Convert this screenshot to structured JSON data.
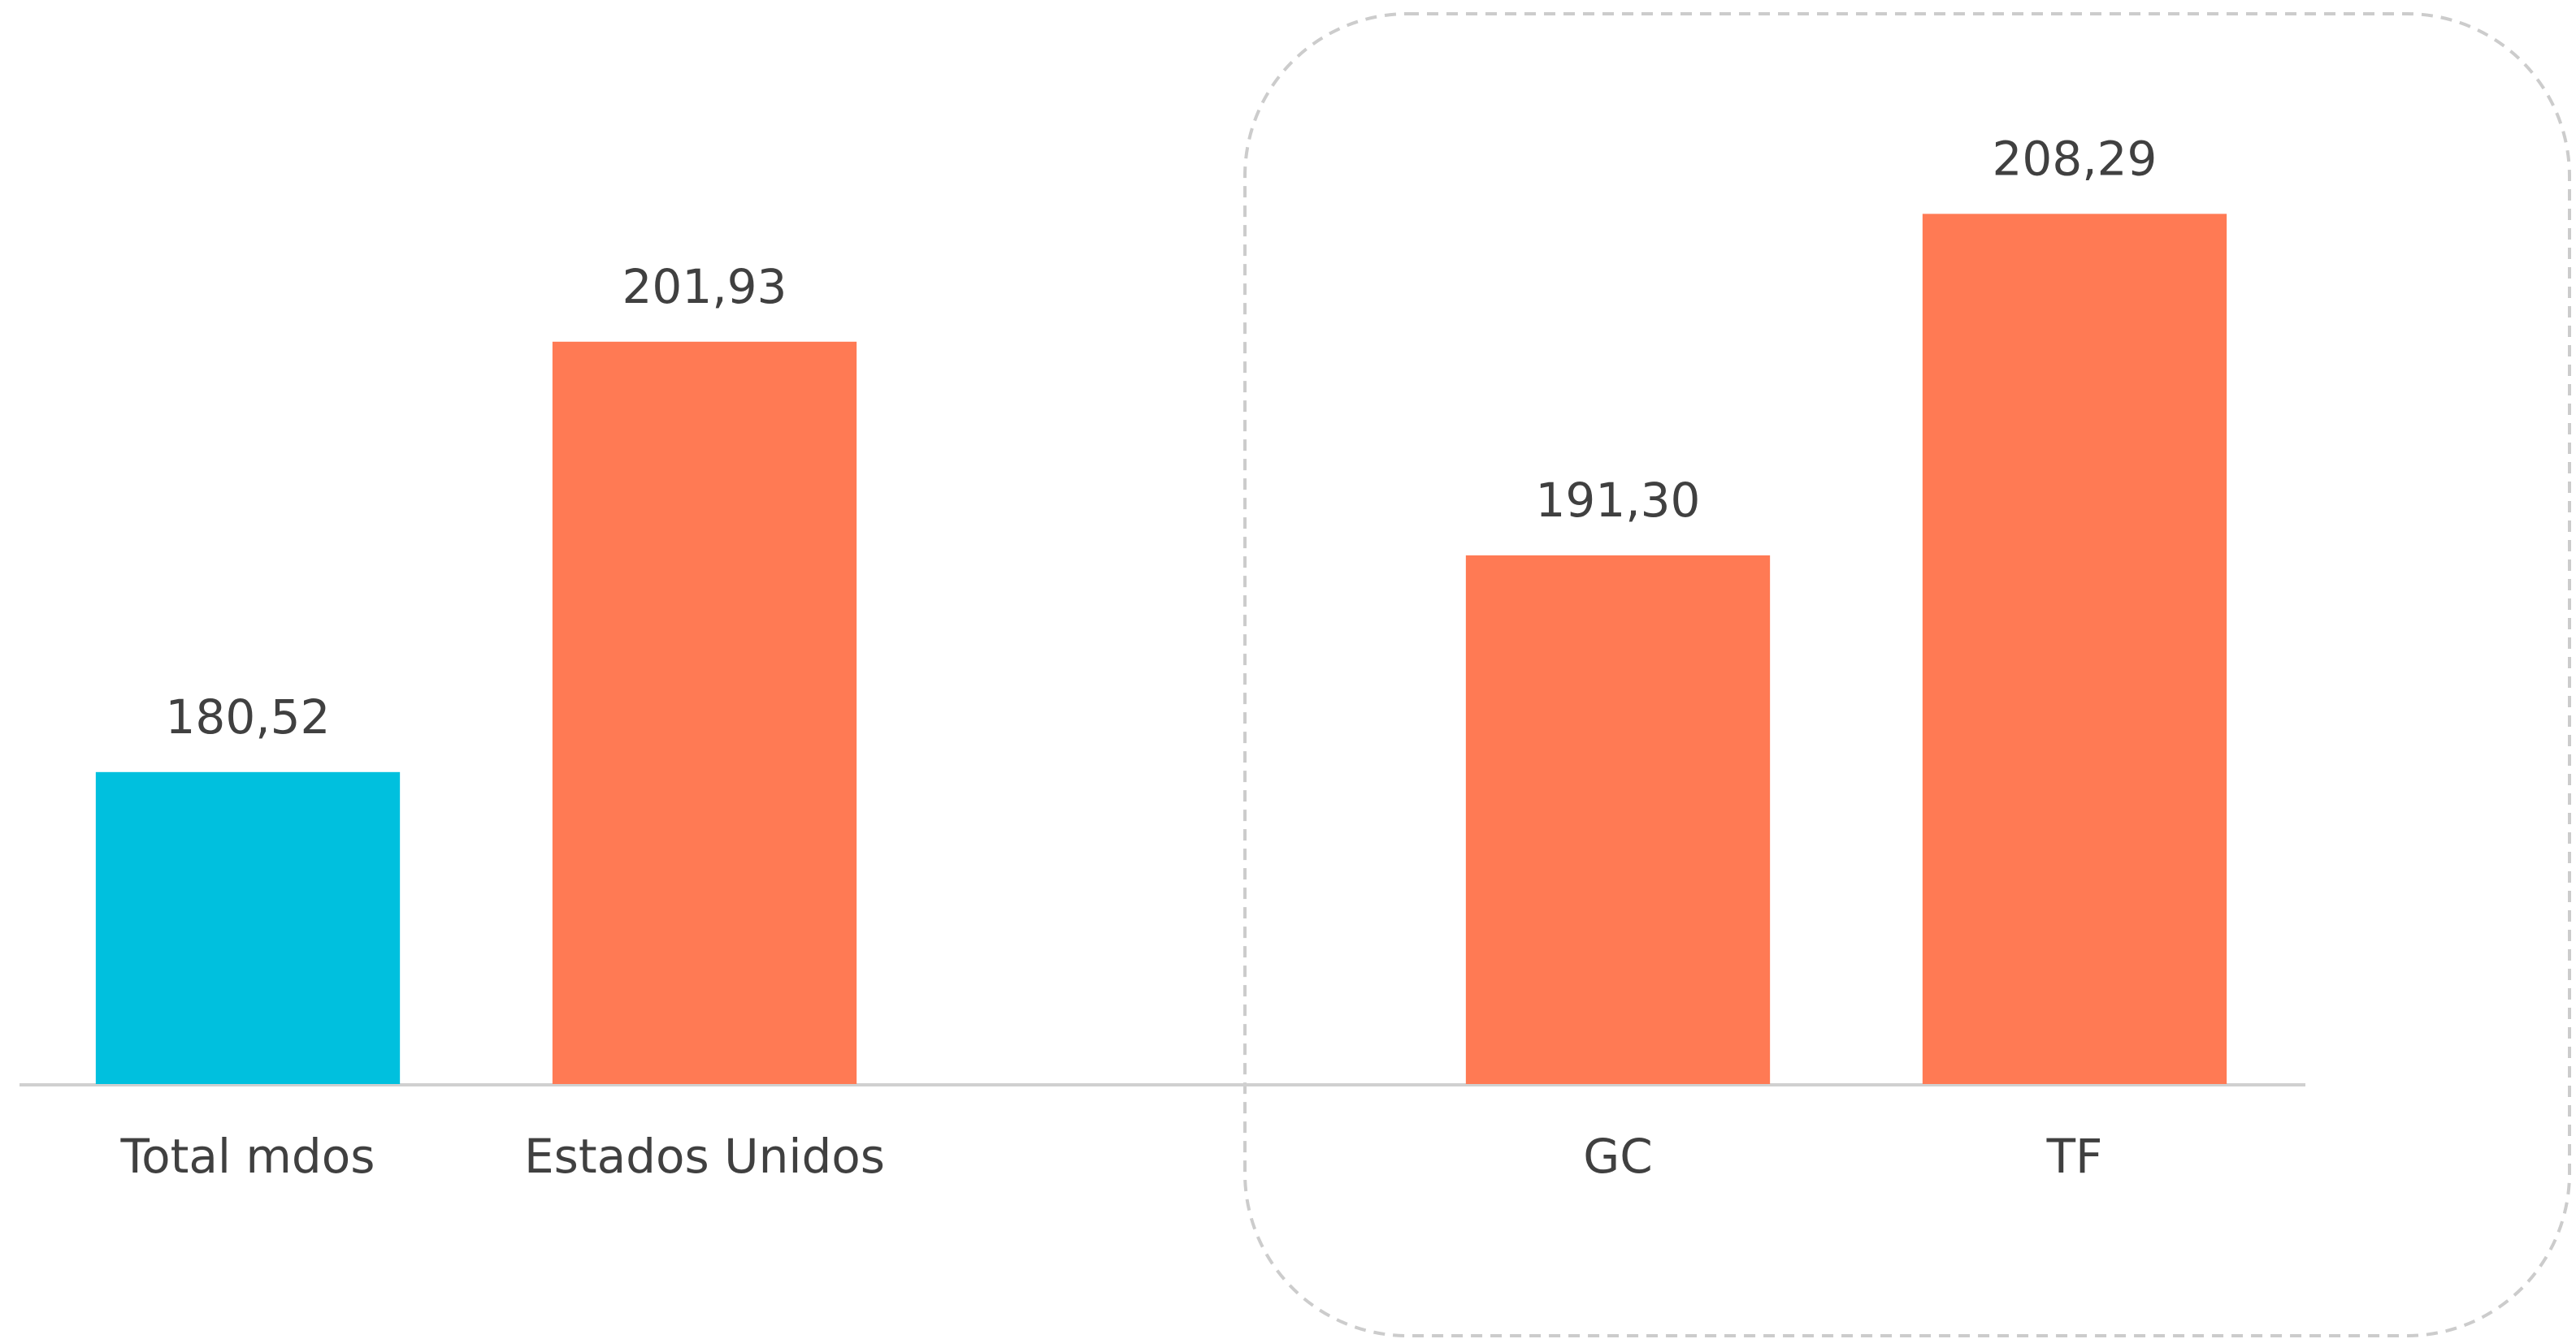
{
  "chart_data": {
    "type": "bar",
    "categories": [
      "Total mdos",
      "Estados Unidos",
      null,
      "GC",
      "TF"
    ],
    "values": [
      180.52,
      201.93,
      null,
      191.3,
      208.29
    ],
    "value_labels": [
      "180,52",
      "201,93",
      null,
      "191,30",
      "208,29"
    ],
    "colors": [
      "#00c0de",
      "#ff7a54",
      null,
      "#ff7a54",
      "#ff7a54"
    ],
    "ylim": [
      165,
      218
    ]
  }
}
